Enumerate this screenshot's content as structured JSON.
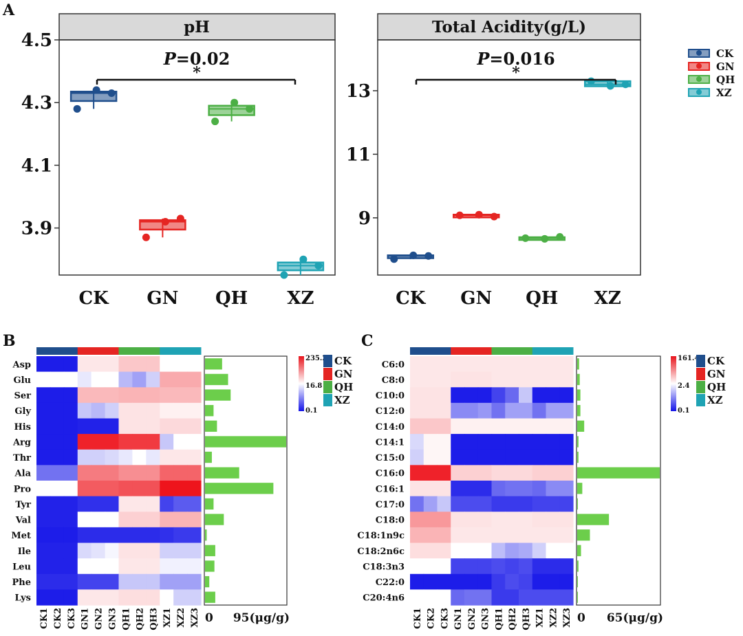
{
  "panel_letters": {
    "a": "A",
    "b": "B",
    "c": "C"
  },
  "groups": [
    {
      "name": "CK",
      "color": "#1f4e8c"
    },
    {
      "name": "GN",
      "color": "#e52522"
    },
    {
      "name": "QH",
      "color": "#4caf45"
    },
    {
      "name": "XZ",
      "color": "#1fa3b4"
    }
  ],
  "chart_data": [
    {
      "type": "box",
      "title": "pH",
      "categories": [
        "CK",
        "GN",
        "QH",
        "XZ"
      ],
      "ylim": [
        3.75,
        4.5
      ],
      "yticks": [
        3.9,
        4.1,
        4.3,
        4.5
      ],
      "points": [
        [
          4.28,
          4.34,
          4.33
        ],
        [
          3.87,
          3.92,
          3.93
        ],
        [
          4.24,
          4.3,
          4.28
        ],
        [
          3.75,
          3.8,
          3.78
        ]
      ],
      "box": [
        [
          4.305,
          4.335
        ],
        [
          3.895,
          3.925
        ],
        [
          4.26,
          4.29
        ],
        [
          3.765,
          3.79
        ]
      ],
      "annotation": {
        "p_label": "P",
        "p_value": "=0.02",
        "star": "*"
      }
    },
    {
      "type": "box",
      "title": "Total Acidity(g/L)",
      "categories": [
        "CK",
        "GN",
        "QH",
        "XZ"
      ],
      "ylim": [
        7.2,
        14.6
      ],
      "yticks": [
        9,
        11,
        13
      ],
      "points": [
        [
          7.7,
          7.82,
          7.8
        ],
        [
          9.08,
          9.1,
          9.04
        ],
        [
          8.36,
          8.34,
          8.4
        ],
        [
          13.3,
          13.15,
          13.2
        ]
      ],
      "box": [
        [
          7.73,
          7.82
        ],
        [
          9.05,
          9.1
        ],
        [
          8.34,
          8.39
        ],
        [
          13.14,
          13.3
        ]
      ],
      "annotation": {
        "p_label": "P",
        "p_value": "=0.016",
        "star": "*"
      }
    },
    {
      "type": "heatmap",
      "rows": [
        "Asp",
        "Glu",
        "Ser",
        "Gly",
        "His",
        "Arg",
        "Thr",
        "Ala",
        "Pro",
        "Tyr",
        "Val",
        "Met",
        "Ile",
        "Leu",
        "Phe",
        "Lys"
      ],
      "columns": [
        "CK1",
        "CK2",
        "CK3",
        "GN1",
        "GN2",
        "GN3",
        "QH1",
        "QH2",
        "QH3",
        "XZ1",
        "XZ2",
        "XZ3"
      ],
      "scale_labels": [
        "235.2",
        "16.8",
        "0.1"
      ],
      "values": [
        [
          0.02,
          0.02,
          0.02,
          0.55,
          0.55,
          0.55,
          0.62,
          0.62,
          0.62,
          0.5,
          0.5,
          0.5
        ],
        [
          0.5,
          0.5,
          0.5,
          0.45,
          0.5,
          0.5,
          0.35,
          0.3,
          0.4,
          0.68,
          0.68,
          0.68
        ],
        [
          0.02,
          0.02,
          0.02,
          0.65,
          0.65,
          0.65,
          0.66,
          0.66,
          0.66,
          0.65,
          0.65,
          0.65
        ],
        [
          0.02,
          0.02,
          0.02,
          0.38,
          0.35,
          0.4,
          0.56,
          0.56,
          0.56,
          0.53,
          0.53,
          0.53
        ],
        [
          0.02,
          0.02,
          0.02,
          0.03,
          0.03,
          0.03,
          0.56,
          0.56,
          0.56,
          0.58,
          0.58,
          0.58
        ],
        [
          0.02,
          0.02,
          0.02,
          0.97,
          0.97,
          0.97,
          0.92,
          0.92,
          0.92,
          0.38,
          0.5,
          0.5
        ],
        [
          0.02,
          0.02,
          0.02,
          0.4,
          0.4,
          0.42,
          0.45,
          0.5,
          0.45,
          0.55,
          0.55,
          0.55
        ],
        [
          0.2,
          0.2,
          0.2,
          0.78,
          0.78,
          0.78,
          0.74,
          0.74,
          0.74,
          0.83,
          0.83,
          0.83
        ],
        [
          0.5,
          0.5,
          0.5,
          0.85,
          0.85,
          0.85,
          0.87,
          0.87,
          0.87,
          1.0,
          1.0,
          1.0
        ],
        [
          0.03,
          0.03,
          0.03,
          0.06,
          0.06,
          0.06,
          0.55,
          0.55,
          0.55,
          0.1,
          0.15,
          0.15
        ],
        [
          0.03,
          0.03,
          0.03,
          0.5,
          0.5,
          0.5,
          0.6,
          0.6,
          0.6,
          0.66,
          0.66,
          0.66
        ],
        [
          0.02,
          0.02,
          0.02,
          0.05,
          0.05,
          0.05,
          0.05,
          0.05,
          0.05,
          0.06,
          0.08,
          0.08
        ],
        [
          0.03,
          0.03,
          0.03,
          0.42,
          0.44,
          0.48,
          0.56,
          0.56,
          0.56,
          0.4,
          0.4,
          0.4
        ],
        [
          0.03,
          0.03,
          0.03,
          0.5,
          0.5,
          0.5,
          0.55,
          0.55,
          0.55,
          0.47,
          0.47,
          0.47
        ],
        [
          0.05,
          0.05,
          0.05,
          0.1,
          0.1,
          0.1,
          0.38,
          0.38,
          0.38,
          0.3,
          0.3,
          0.3
        ],
        [
          0.02,
          0.02,
          0.02,
          0.55,
          0.55,
          0.55,
          0.57,
          0.57,
          0.57,
          0.5,
          0.4,
          0.4
        ]
      ],
      "bars": {
        "values": [
          20,
          27,
          30,
          10,
          14,
          95,
          8,
          40,
          80,
          10,
          22,
          2,
          12,
          11,
          5,
          12
        ],
        "xlim": [
          0,
          95
        ],
        "xtick_labels": [
          "0",
          "95(μg/g)"
        ],
        "color": "#6cce4b"
      }
    },
    {
      "type": "heatmap",
      "rows": [
        "C6:0",
        "C8:0",
        "C10:0",
        "C12:0",
        "C14:0",
        "C14:1",
        "C15:0",
        "C16:0",
        "C16:1",
        "C17:0",
        "C18:0",
        "C18:1n9c",
        "C18:2n6c",
        "C18:3n3",
        "C22:0",
        "C20:4n6"
      ],
      "columns": [
        "CK1",
        "CK2",
        "CK3",
        "GN1",
        "GN2",
        "GN3",
        "QH1",
        "QH2",
        "QH3",
        "XZ1",
        "XZ2",
        "XZ3"
      ],
      "scale_labels": [
        "161.4",
        "2.4",
        "0.1"
      ],
      "values": [
        [
          0.55,
          0.55,
          0.55,
          0.55,
          0.55,
          0.55,
          0.55,
          0.55,
          0.55,
          0.55,
          0.55,
          0.55
        ],
        [
          0.55,
          0.55,
          0.55,
          0.56,
          0.56,
          0.56,
          0.55,
          0.55,
          0.55,
          0.55,
          0.55,
          0.55
        ],
        [
          0.56,
          0.56,
          0.56,
          0.02,
          0.02,
          0.02,
          0.1,
          0.18,
          0.38,
          0.02,
          0.02,
          0.02
        ],
        [
          0.56,
          0.56,
          0.56,
          0.25,
          0.25,
          0.28,
          0.2,
          0.3,
          0.3,
          0.2,
          0.3,
          0.3
        ],
        [
          0.62,
          0.62,
          0.62,
          0.53,
          0.53,
          0.53,
          0.53,
          0.53,
          0.53,
          0.53,
          0.53,
          0.53
        ],
        [
          0.42,
          0.52,
          0.52,
          0.02,
          0.02,
          0.02,
          0.02,
          0.02,
          0.02,
          0.02,
          0.02,
          0.02
        ],
        [
          0.4,
          0.52,
          0.52,
          0.02,
          0.02,
          0.02,
          0.02,
          0.02,
          0.02,
          0.02,
          0.02,
          0.02
        ],
        [
          0.97,
          0.97,
          0.97,
          0.6,
          0.6,
          0.6,
          0.58,
          0.58,
          0.58,
          0.6,
          0.6,
          0.6
        ],
        [
          0.56,
          0.56,
          0.56,
          0.05,
          0.05,
          0.05,
          0.18,
          0.2,
          0.2,
          0.18,
          0.25,
          0.25
        ],
        [
          0.2,
          0.3,
          0.38,
          0.12,
          0.12,
          0.12,
          0.08,
          0.08,
          0.08,
          0.1,
          0.1,
          0.1
        ],
        [
          0.72,
          0.72,
          0.72,
          0.56,
          0.56,
          0.56,
          0.55,
          0.55,
          0.55,
          0.56,
          0.56,
          0.56
        ],
        [
          0.66,
          0.66,
          0.66,
          0.55,
          0.55,
          0.55,
          0.55,
          0.55,
          0.55,
          0.55,
          0.55,
          0.55
        ],
        [
          0.57,
          0.57,
          0.57,
          0.5,
          0.5,
          0.5,
          0.36,
          0.3,
          0.32,
          0.4,
          0.5,
          0.5
        ],
        [
          0.5,
          0.5,
          0.5,
          0.1,
          0.1,
          0.1,
          0.12,
          0.1,
          0.12,
          0.05,
          0.05,
          0.05
        ],
        [
          0.02,
          0.02,
          0.02,
          0.02,
          0.02,
          0.02,
          0.08,
          0.12,
          0.1,
          0.02,
          0.02,
          0.02
        ],
        [
          0.5,
          0.5,
          0.5,
          0.18,
          0.2,
          0.2,
          0.08,
          0.08,
          0.12,
          0.12,
          0.12,
          0.12
        ]
      ],
      "bars": {
        "values": [
          1.5,
          2,
          2.5,
          2.5,
          5.5,
          1,
          1,
          65,
          4,
          0.5,
          25,
          10,
          3,
          1,
          0.5,
          0.5
        ],
        "xlim": [
          0,
          65
        ],
        "xtick_labels": [
          "0",
          "65(μg/g)"
        ],
        "color": "#6cce4b"
      }
    }
  ]
}
